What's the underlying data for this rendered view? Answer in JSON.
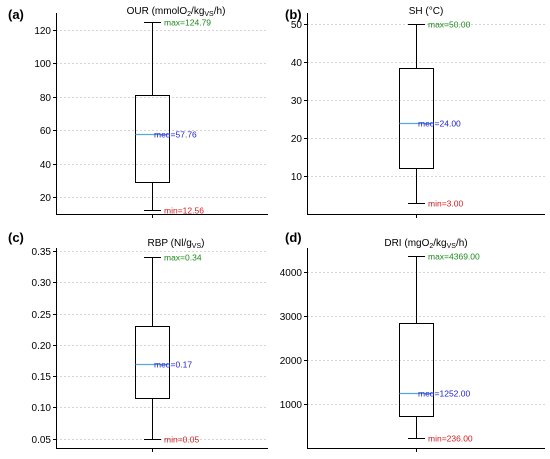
{
  "chart_data": [
    {
      "type": "box",
      "panel_label": "(a)",
      "title_parts": [
        {
          "t": "OUR (mmolO"
        },
        {
          "t": "2",
          "sub": true
        },
        {
          "t": "/kg"
        },
        {
          "t": "VS",
          "sub": true
        },
        {
          "t": "/h)"
        }
      ],
      "ylim": [
        10,
        130
      ],
      "yticks": [
        20,
        40,
        60,
        80,
        100,
        120
      ],
      "ytick_labels": [
        "20",
        "40",
        "60",
        "80",
        "100",
        "120"
      ],
      "min": 12.56,
      "q1": 29,
      "median": 57.76,
      "q3": 81,
      "max": 124.79,
      "max_label": "max=124.79",
      "median_label": "med=57.76",
      "min_label": "min=12.56",
      "grid": true
    },
    {
      "type": "box",
      "panel_label": "(b)",
      "title_parts": [
        {
          "t": "SH (°C)"
        }
      ],
      "ylim": [
        0,
        53
      ],
      "yticks": [
        10,
        20,
        30,
        40,
        50
      ],
      "ytick_labels": [
        "10",
        "20",
        "30",
        "40",
        "50"
      ],
      "min": 3.0,
      "q1": 12,
      "median": 24.0,
      "q3": 38.5,
      "max": 50.0,
      "max_label": "max=50.00",
      "median_label": "med=24.00",
      "min_label": "min=3.00",
      "grid": true
    },
    {
      "type": "box",
      "panel_label": "(c)",
      "title_parts": [
        {
          "t": "RBP (Nl/g"
        },
        {
          "t": "VS",
          "sub": true
        },
        {
          "t": ")"
        }
      ],
      "ylim": [
        0.035,
        0.355
      ],
      "yticks": [
        0.05,
        0.1,
        0.15,
        0.2,
        0.25,
        0.3,
        0.35
      ],
      "ytick_labels": [
        "0.05",
        "0.10",
        "0.15",
        "0.20",
        "0.25",
        "0.30",
        "0.35"
      ],
      "min": 0.05,
      "q1": 0.115,
      "median": 0.17,
      "q3": 0.23,
      "max": 0.34,
      "max_label": "max=0.34",
      "median_label": "med=0.17",
      "min_label": "min=0.05",
      "grid": true
    },
    {
      "type": "box",
      "panel_label": "(d)",
      "title_parts": [
        {
          "t": "DRI (mgO"
        },
        {
          "t": "2",
          "sub": true
        },
        {
          "t": "/kg"
        },
        {
          "t": "VS",
          "sub": true
        },
        {
          "t": "/h)"
        }
      ],
      "ylim": [
        0,
        4550
      ],
      "yticks": [
        1000,
        2000,
        3000,
        4000
      ],
      "ytick_labels": [
        "1000",
        "2000",
        "3000",
        "4000"
      ],
      "min": 236.0,
      "q1": 720,
      "median": 1252.0,
      "q3": 2850,
      "max": 4369.0,
      "max_label": "max=4369.00",
      "median_label": "med=1252.00",
      "min_label": "min=236.00",
      "grid": true
    }
  ]
}
